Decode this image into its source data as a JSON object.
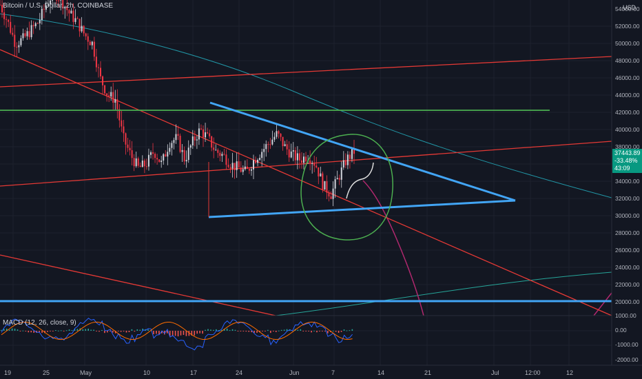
{
  "header": {
    "title": "Bitcoin / U.S. Dollar, 2h, COINBASE",
    "currency": "USD"
  },
  "price_badge": {
    "price": "37443.89",
    "change": "-33.48%",
    "countdown": "43:09"
  },
  "macd": {
    "label": "MACD (12, 26, close, 9)",
    "ticks": [
      "1000.00",
      "0.00",
      "-1000.00",
      "-2000.00"
    ]
  },
  "colors": {
    "background": "#131722",
    "blue": "#42a5f5",
    "red": "#e53935",
    "green": "#4caf50",
    "teal": "#26a69a",
    "magenta": "#b0286e",
    "candle_up": "#d1d4dc",
    "candle_down": "#f23645"
  },
  "chart_data": [
    {
      "type": "candlestick",
      "title": "Bitcoin / U.S. Dollar, 2h, COINBASE",
      "y_ticks": [
        "54000.00",
        "52000.00",
        "50000.00",
        "48000.00",
        "46000.00",
        "44000.00",
        "42000.00",
        "40000.00",
        "38000.00",
        "36000.00",
        "34000.00",
        "32000.00",
        "30000.00",
        "28000.00",
        "26000.00",
        "24000.00",
        "22000.00",
        "20000.00"
      ],
      "x_ticks": [
        "19",
        "25",
        "May",
        "10",
        "17",
        "24",
        "Jun",
        "7",
        "14",
        "21",
        "Jul",
        "12:00",
        "12"
      ],
      "ylim": [
        18000,
        55000
      ],
      "price_path": [
        [
          0,
          54500
        ],
        [
          2,
          52500
        ],
        [
          4,
          50000
        ],
        [
          6,
          50500
        ],
        [
          9,
          51500
        ],
        [
          12,
          52500
        ],
        [
          15,
          54500
        ],
        [
          18,
          56000
        ],
        [
          21,
          55000
        ],
        [
          24,
          53500
        ],
        [
          26,
          52500
        ],
        [
          28,
          51000
        ],
        [
          30,
          50000
        ],
        [
          32,
          46000
        ],
        [
          33,
          44000
        ],
        [
          34,
          43500
        ],
        [
          35,
          39000
        ],
        [
          36,
          37000
        ],
        [
          37,
          35500
        ],
        [
          38,
          36000
        ],
        [
          39,
          37500
        ],
        [
          40,
          36000
        ],
        [
          41,
          38500
        ],
        [
          42,
          39000
        ],
        [
          43,
          36500
        ],
        [
          44,
          38500
        ],
        [
          45,
          40000
        ],
        [
          46,
          39000
        ],
        [
          47,
          37500
        ],
        [
          48,
          37000
        ],
        [
          49,
          36000
        ],
        [
          50,
          35500
        ],
        [
          51,
          35000
        ],
        [
          52,
          36500
        ],
        [
          53,
          37500
        ],
        [
          54,
          38500
        ],
        [
          55,
          39500
        ],
        [
          56,
          38000
        ],
        [
          57,
          37000
        ],
        [
          58,
          36500
        ],
        [
          59,
          37000
        ],
        [
          60,
          36000
        ],
        [
          61,
          33500
        ],
        [
          62,
          32500
        ],
        [
          63,
          34500
        ],
        [
          64,
          36500
        ],
        [
          65,
          37443.89
        ]
      ],
      "drawings": {
        "triangle_top": [
          [
            42800,
            43200
          ],
          [
            51900,
            37200
          ],
          [
            58200,
            31900
          ]
        ],
        "triangle_bottom": [
          [
            30000
          ],
          [
            31900
          ]
        ],
        "horizontal_green": 42200,
        "horizontal_blue": 20200
      },
      "macd_ylim": [
        -2200,
        1300
      ]
    }
  ]
}
